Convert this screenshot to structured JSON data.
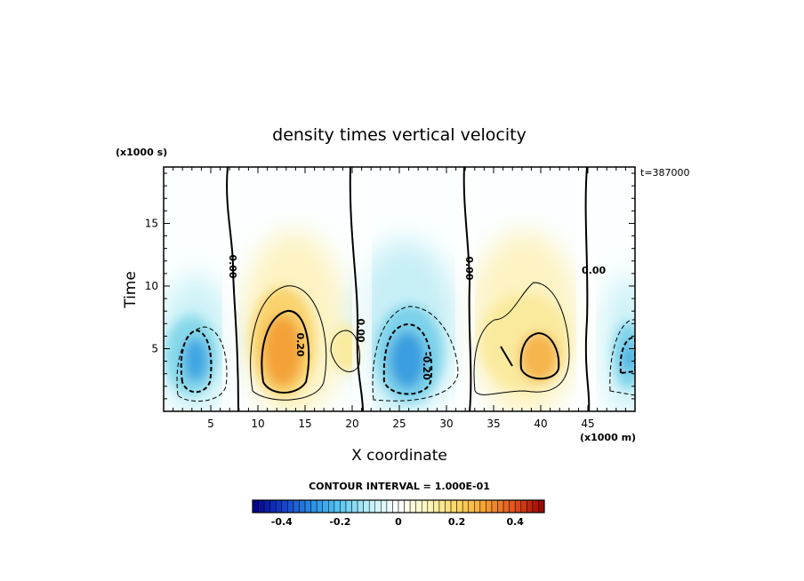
{
  "chart_data": {
    "type": "heatmap",
    "title": "density times vertical velocity",
    "xlabel": "X coordinate",
    "ylabel": "Time",
    "x_units": "(x1000 m)",
    "y_units": "(x1000 s)",
    "time_stamp": "t=387000",
    "xlim": [
      0,
      50
    ],
    "ylim": [
      0,
      19.5
    ],
    "x_ticks": [
      "5",
      "10",
      "15",
      "20",
      "25",
      "30",
      "35",
      "40",
      "45"
    ],
    "y_ticks": [
      "5",
      "10",
      "15"
    ],
    "contour_interval_text": "CONTOUR INTERVAL = 1.000E-01",
    "contour_labels": [
      "0.00",
      "0.00",
      "0.00",
      "0.00",
      "0.20",
      "-0.20"
    ],
    "colorbar": {
      "range": [
        -0.5,
        0.5
      ],
      "ticks": [
        "-0.4",
        "-0.2",
        "0",
        "0.2",
        "0.4"
      ],
      "tick_values": [
        -0.4,
        -0.2,
        0,
        0.2,
        0.4
      ]
    },
    "features": [
      {
        "type": "negative",
        "x_center": 3,
        "t_center": 4.5,
        "peak": -0.35
      },
      {
        "type": "positive",
        "x_center": 13,
        "t_center": 4.8,
        "peak": 0.32
      },
      {
        "type": "positive",
        "x_center": 19.5,
        "t_center": 5,
        "peak": 0.12
      },
      {
        "type": "negative",
        "x_center": 26,
        "t_center": 4.5,
        "peak": -0.36
      },
      {
        "type": "positive",
        "x_center": 39,
        "t_center": 4.8,
        "peak": 0.3
      },
      {
        "type": "negative",
        "x_center": 49,
        "t_center": 4.5,
        "peak": -0.2
      }
    ],
    "colors": {
      "strong_negative": "#1f6fd6",
      "weak_negative": "#e8fbfd",
      "zero": "#ffffff",
      "weak_positive": "#fdf6cf",
      "strong_positive": "#f08a25"
    }
  }
}
